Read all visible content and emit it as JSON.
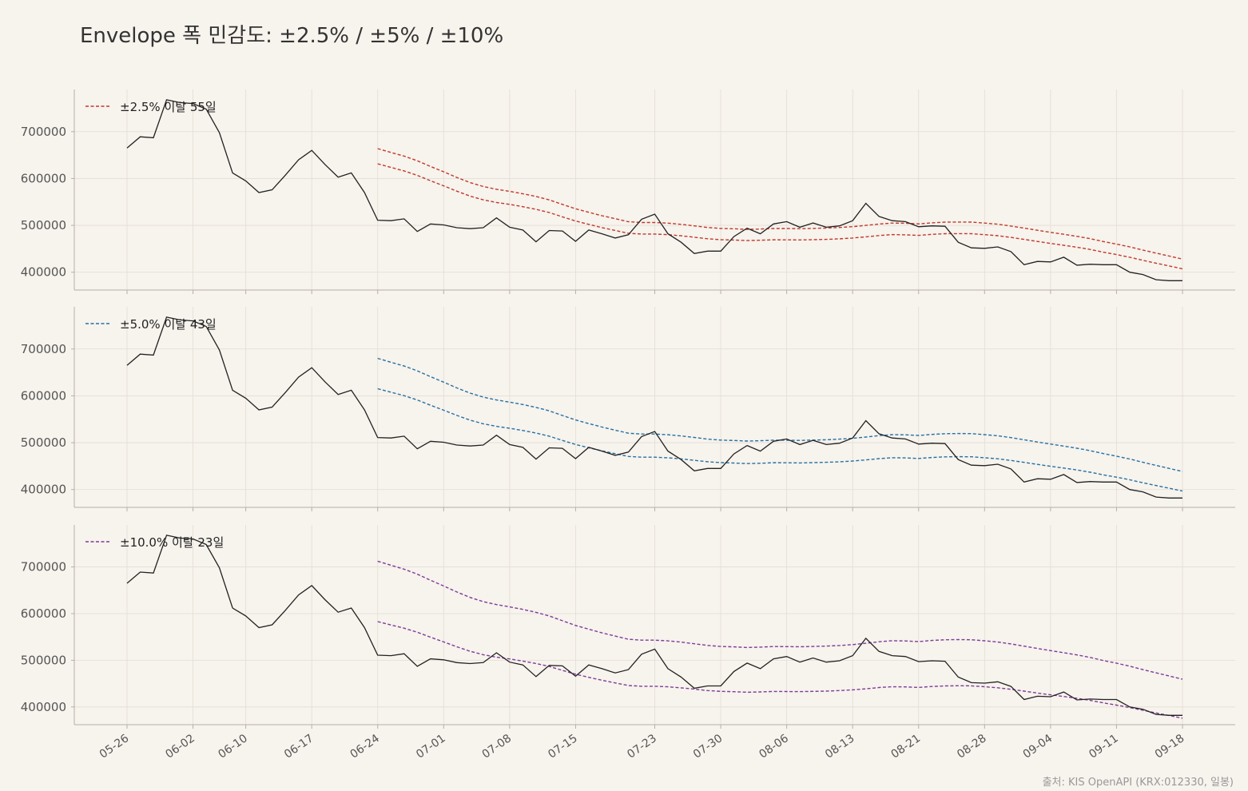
{
  "figure": {
    "title": "Envelope 폭 민감도: ±2.5% / ±5% / ±10%",
    "source": "출처: KIS OpenAPI (KRX:012330, 일봉)"
  },
  "colors": {
    "background": "#f7f3ed",
    "grid": "#e3ddd4",
    "axis": "#b5b0a8",
    "price": "#222222",
    "band_2_5": "#c0392b",
    "band_5": "#2471a3",
    "band_10": "#7d3c98"
  },
  "chart_data": [
    {
      "type": "line",
      "legend": "±2.5% 이탈 55일",
      "legend_placement": "top-left",
      "band_pct": 2.5,
      "y_ticks": [
        400000,
        500000,
        600000,
        700000
      ],
      "ylim": [
        362000,
        790000
      ],
      "grid": true
    },
    {
      "type": "line",
      "legend": "±5.0% 이탈 43일",
      "legend_placement": "top-left",
      "band_pct": 5.0,
      "y_ticks": [
        400000,
        500000,
        600000,
        700000
      ],
      "ylim": [
        362000,
        790000
      ],
      "grid": true
    },
    {
      "type": "line",
      "legend": "±10.0% 이탈 23일",
      "legend_placement": "top-left",
      "band_pct": 10.0,
      "y_ticks": [
        400000,
        500000,
        600000,
        700000
      ],
      "ylim": [
        362000,
        790000
      ],
      "grid": true
    }
  ],
  "x_tick_labels": [
    "05-26",
    "06-02",
    "06-10",
    "06-17",
    "06-24",
    "07-01",
    "07-08",
    "07-15",
    "07-23",
    "07-30",
    "08-06",
    "08-13",
    "08-21",
    "08-28",
    "09-04",
    "09-11",
    "09-18"
  ],
  "dates": [
    "05-26",
    "05-27",
    "05-28",
    "05-29",
    "05-30",
    "06-02",
    "06-04",
    "06-05",
    "06-09",
    "06-10",
    "06-11",
    "06-12",
    "06-13",
    "06-16",
    "06-17",
    "06-18",
    "06-19",
    "06-20",
    "06-23",
    "06-24",
    "06-25",
    "06-26",
    "06-27",
    "06-30",
    "07-01",
    "07-02",
    "07-03",
    "07-04",
    "07-07",
    "07-08",
    "07-09",
    "07-10",
    "07-11",
    "07-14",
    "07-15",
    "07-16",
    "07-17",
    "07-18",
    "07-21",
    "07-22",
    "07-23",
    "07-24",
    "07-25",
    "07-28",
    "07-29",
    "07-30",
    "07-31",
    "08-01",
    "08-04",
    "08-05",
    "08-06",
    "08-07",
    "08-08",
    "08-11",
    "08-12",
    "08-13",
    "08-14",
    "08-18",
    "08-19",
    "08-20",
    "08-21",
    "08-22",
    "08-25",
    "08-26",
    "08-27",
    "08-28",
    "08-29",
    "09-01",
    "09-02",
    "09-03",
    "09-04",
    "09-05",
    "09-08",
    "09-09",
    "09-10",
    "09-11",
    "09-12",
    "09-15",
    "09-16",
    "09-17",
    "09-18"
  ],
  "close": [
    665000,
    689000,
    687000,
    768000,
    762000,
    760000,
    748000,
    698000,
    612000,
    595000,
    570000,
    576000,
    607000,
    640000,
    660000,
    630000,
    603000,
    612000,
    570000,
    511000,
    510000,
    514000,
    487000,
    503000,
    501000,
    495000,
    493000,
    495000,
    516000,
    496000,
    490000,
    465000,
    489000,
    488000,
    466000,
    490000,
    482000,
    473000,
    480000,
    513000,
    524000,
    482000,
    464000,
    440000,
    445000,
    445000,
    476000,
    494000,
    482000,
    503000,
    508000,
    496000,
    505000,
    496000,
    499000,
    510000,
    547000,
    519000,
    510000,
    508000,
    497000,
    499000,
    498000,
    464000,
    452000,
    451000,
    454000,
    444000,
    416000,
    423000,
    422000,
    432000,
    415000,
    417000,
    416000,
    416000,
    400000,
    395000,
    384000,
    382000,
    382000
  ],
  "ma_start_index": 19,
  "ma": [
    647600,
    639700,
    632000,
    622300,
    610500,
    599300,
    587600,
    577000,
    568800,
    563000,
    558700,
    553700,
    547900,
    540900,
    531500,
    522400,
    515000,
    507900,
    501700,
    495400,
    493800,
    493800,
    492400,
    490000,
    486800,
    483500,
    481500,
    480700,
    479500,
    480200,
    481300,
    481200,
    480900,
    481500,
    482200,
    483400,
    485100,
    487700,
    490600,
    492600,
    492200,
    490900,
    493100,
    494500,
    494800,
    494600,
    492500,
    490200,
    486500,
    482100,
    477600,
    473300,
    469300,
    465000,
    460100,
    454100,
    448900,
    443000,
    436400,
    430100,
    423900,
    417600
  ]
}
